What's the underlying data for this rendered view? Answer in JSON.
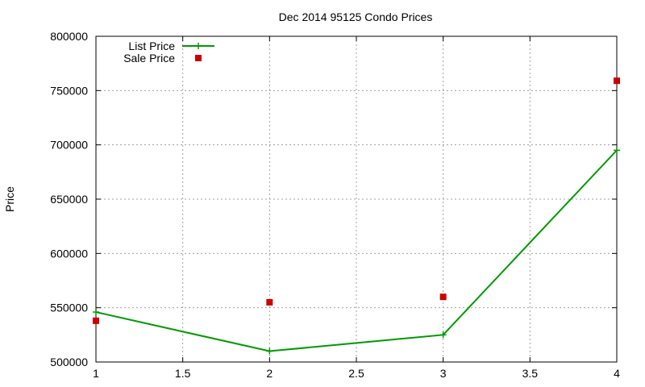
{
  "chart_data": {
    "type": "line",
    "title": "Dec 2014 95125 Condo Prices",
    "xlabel": "",
    "ylabel": "Price",
    "xlim": [
      1,
      4
    ],
    "ylim": [
      500000,
      800000
    ],
    "x_ticks": [
      "1",
      "1.5",
      "2",
      "2.5",
      "3",
      "3.5",
      "4"
    ],
    "y_ticks": [
      "500000",
      "550000",
      "600000",
      "650000",
      "700000",
      "750000",
      "800000"
    ],
    "grid": true,
    "legend_position": "top-left",
    "series": [
      {
        "name": "List Price",
        "style": "line-plus",
        "color": "#009900",
        "x": [
          1,
          2,
          3,
          4
        ],
        "y": [
          546000,
          510000,
          525000,
          695000
        ]
      },
      {
        "name": "Sale Price",
        "style": "square-points",
        "color": "#cc0000",
        "x": [
          1,
          2,
          3,
          4
        ],
        "y": [
          538000,
          555000,
          560000,
          759000
        ]
      }
    ]
  }
}
